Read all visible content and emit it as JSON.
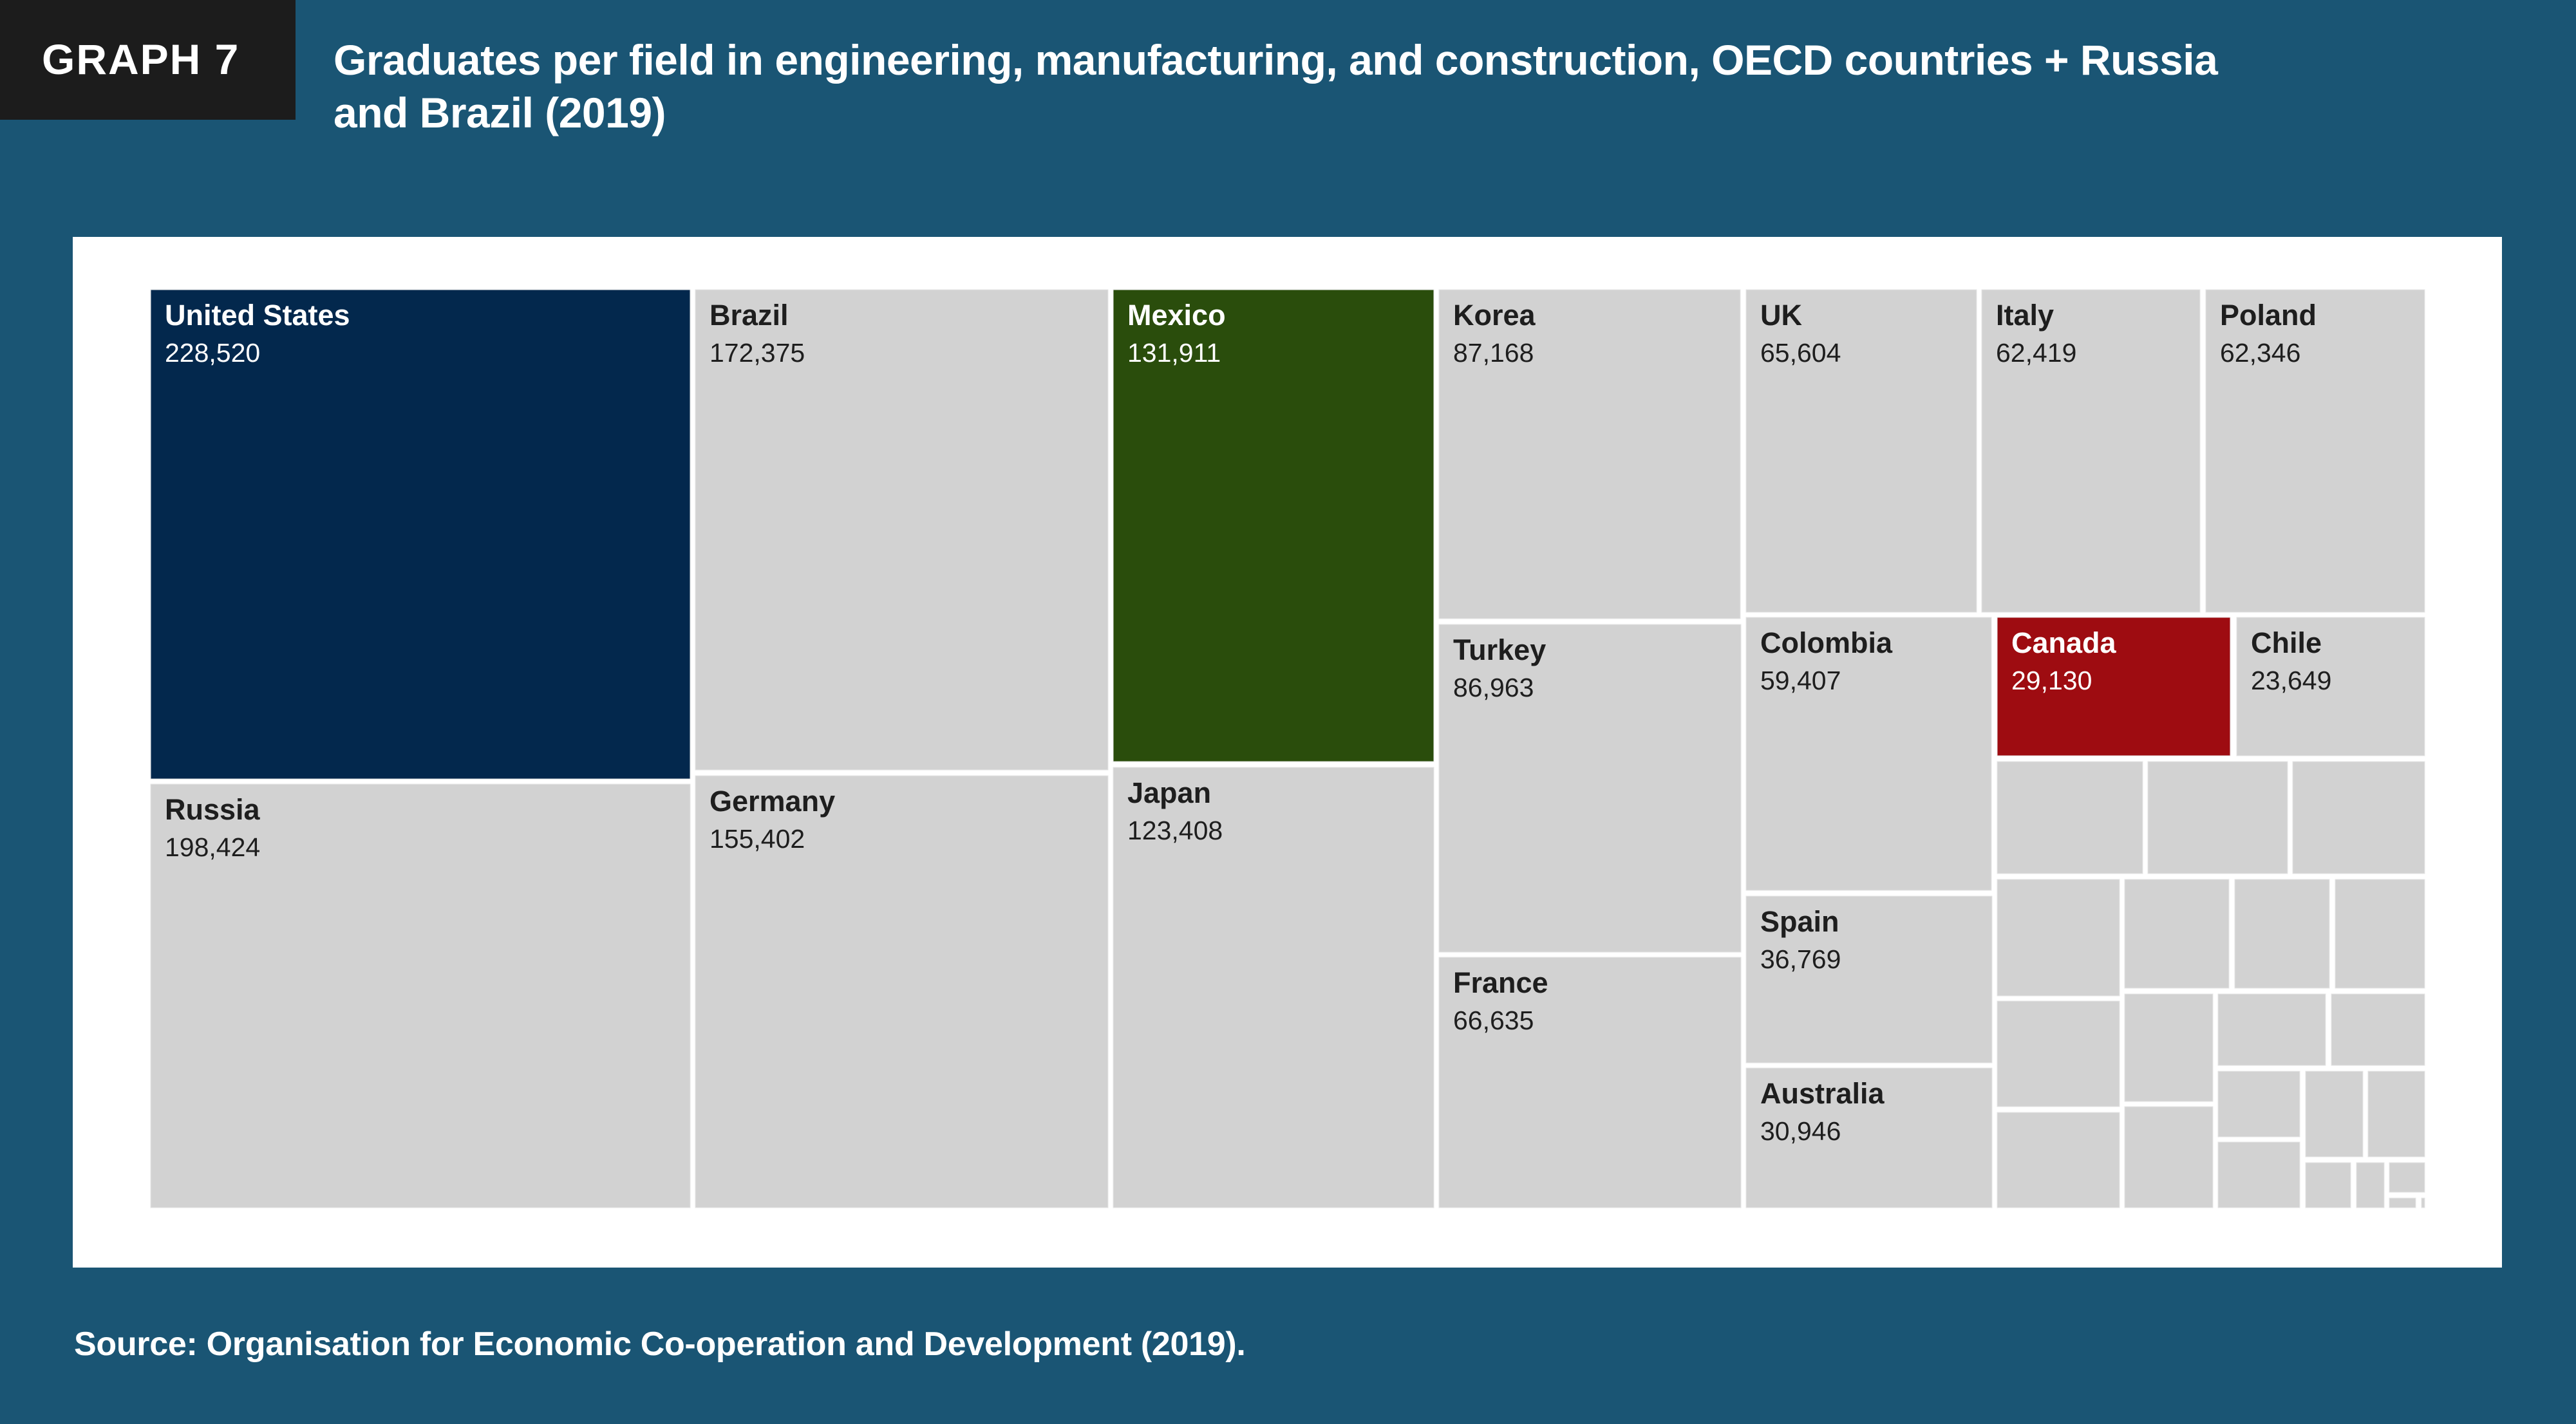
{
  "header": {
    "badge": "GRAPH 7",
    "title_line1": "Graduates per field in engineering, manufacturing, and construction, OECD countries + Russia",
    "title_line2": "and Brazil (2019)"
  },
  "footer": {
    "source": "Source: Organisation for Economic Co-operation and Development (2019)."
  },
  "colors": {
    "background": "#1a5574",
    "badge": "#1c1c1c",
    "default_tile": "#d2d2d2",
    "default_text": "#1e1e1e",
    "highlight_text": "#ffffff"
  },
  "chart_data": {
    "type": "treemap",
    "title": "Graduates per field in engineering, manufacturing, and construction, OECD countries + Russia and Brazil (2019)",
    "unit": "graduates",
    "items": [
      {
        "name": "United States",
        "value": 228520,
        "label": "228,520",
        "color": "#03284d",
        "highlight": true
      },
      {
        "name": "Russia",
        "value": 198424,
        "label": "198,424"
      },
      {
        "name": "Brazil",
        "value": 172375,
        "label": "172,375"
      },
      {
        "name": "Germany",
        "value": 155402,
        "label": "155,402"
      },
      {
        "name": "Mexico",
        "value": 131911,
        "label": "131,911",
        "color": "#2a4d0c",
        "highlight": true
      },
      {
        "name": "Japan",
        "value": 123408,
        "label": "123,408"
      },
      {
        "name": "Korea",
        "value": 87168,
        "label": "87,168"
      },
      {
        "name": "Turkey",
        "value": 86963,
        "label": "86,963"
      },
      {
        "name": "France",
        "value": 66635,
        "label": "66,635"
      },
      {
        "name": "UK",
        "value": 65604,
        "label": "65,604"
      },
      {
        "name": "Italy",
        "value": 62419,
        "label": "62,419"
      },
      {
        "name": "Poland",
        "value": 62346,
        "label": "62,346"
      },
      {
        "name": "Colombia",
        "value": 59407,
        "label": "59,407"
      },
      {
        "name": "Spain",
        "value": 36769,
        "label": "36,769"
      },
      {
        "name": "Australia",
        "value": 30946,
        "label": "30,946"
      },
      {
        "name": "Canada",
        "value": 29130,
        "label": "29,130",
        "color": "#9e0c11",
        "highlight": true
      },
      {
        "name": "Chile",
        "value": 23649,
        "label": "23,649"
      }
    ],
    "unlabeled_tiles": 29
  }
}
